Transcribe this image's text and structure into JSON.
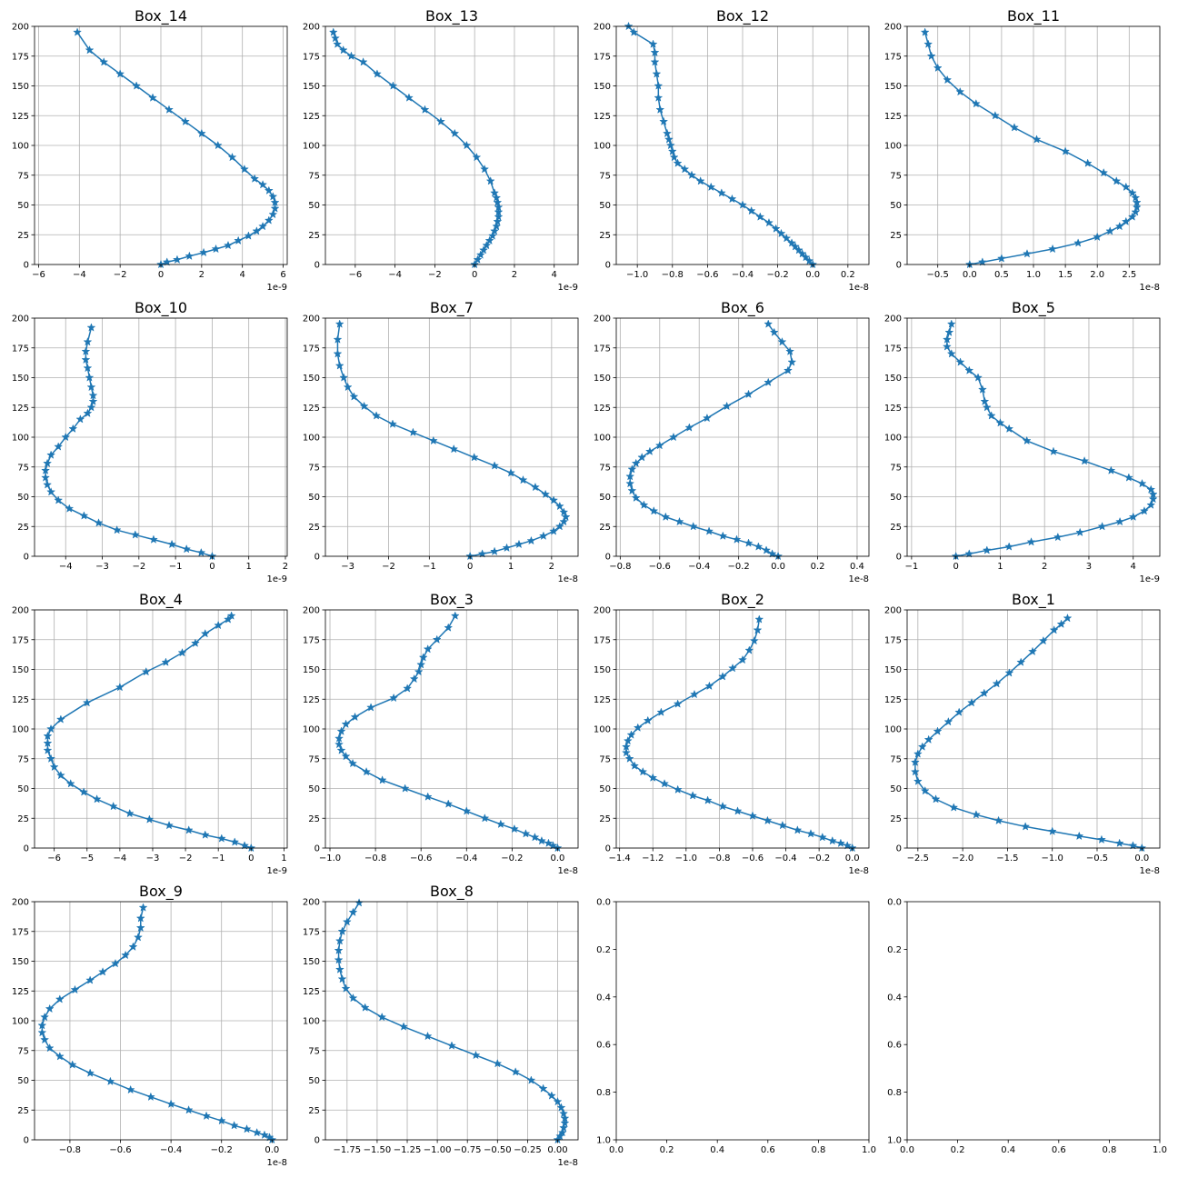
{
  "chart_data": [
    {
      "type": "line",
      "title": "Box_14",
      "multiplier": "1e-9",
      "grid": true,
      "xlim": [
        -6.2,
        6.2
      ],
      "xticks": [
        -6,
        -4,
        -2,
        0,
        2,
        4,
        6
      ],
      "ylim": [
        200,
        0
      ],
      "yticks": [
        0,
        25,
        50,
        75,
        100,
        125,
        150,
        175,
        200
      ],
      "x": [
        0.0,
        0.3,
        0.8,
        1.4,
        2.1,
        2.7,
        3.3,
        3.8,
        4.3,
        4.7,
        5.0,
        5.3,
        5.5,
        5.6,
        5.6,
        5.5,
        5.3,
        5.0,
        4.6,
        4.1,
        3.5,
        2.8,
        2.0,
        1.2,
        0.4,
        -0.4,
        -1.2,
        -2.0,
        -2.8,
        -3.5,
        -4.1
      ],
      "y": [
        0,
        2,
        4,
        7,
        10,
        13,
        16,
        20,
        24,
        28,
        32,
        37,
        42,
        47,
        52,
        57,
        62,
        67,
        72,
        80,
        90,
        100,
        110,
        120,
        130,
        140,
        150,
        160,
        170,
        180,
        195
      ]
    },
    {
      "type": "line",
      "title": "Box_13",
      "multiplier": "1e-9",
      "grid": true,
      "xlim": [
        -7.5,
        5.2
      ],
      "xticks": [
        -6,
        -4,
        -2,
        0,
        2,
        4
      ],
      "ylim": [
        200,
        0
      ],
      "yticks": [
        0,
        25,
        50,
        75,
        100,
        125,
        150,
        175,
        200
      ],
      "x": [
        0.0,
        0.15,
        0.3,
        0.45,
        0.6,
        0.75,
        0.9,
        1.0,
        1.1,
        1.15,
        1.2,
        1.2,
        1.2,
        1.15,
        1.1,
        1.0,
        0.8,
        0.5,
        0.1,
        -0.4,
        -1.0,
        -1.7,
        -2.5,
        -3.3,
        -4.1,
        -4.9,
        -5.6,
        -6.2,
        -6.6,
        -6.9,
        -7.0,
        -7.1
      ],
      "y": [
        0,
        4,
        8,
        12,
        16,
        20,
        24,
        28,
        32,
        36,
        40,
        44,
        48,
        52,
        56,
        60,
        70,
        80,
        90,
        100,
        110,
        120,
        130,
        140,
        150,
        160,
        170,
        175,
        180,
        185,
        190,
        195
      ]
    },
    {
      "type": "line",
      "title": "Box_12",
      "multiplier": "1e-8",
      "grid": true,
      "xlim": [
        -1.12,
        0.32
      ],
      "xticks": [
        -1.0,
        -0.8,
        -0.6,
        -0.4,
        -0.2,
        0.0,
        0.2
      ],
      "ylim": [
        200,
        0
      ],
      "yticks": [
        0,
        25,
        50,
        75,
        100,
        125,
        150,
        175,
        200
      ],
      "x": [
        0.0,
        -0.02,
        -0.04,
        -0.06,
        -0.08,
        -0.1,
        -0.12,
        -0.15,
        -0.18,
        -0.21,
        -0.25,
        -0.3,
        -0.35,
        -0.4,
        -0.46,
        -0.52,
        -0.58,
        -0.64,
        -0.69,
        -0.73,
        -0.77,
        -0.79,
        -0.8,
        -0.81,
        -0.82,
        -0.83,
        -0.85,
        -0.87,
        -0.88,
        -0.88,
        -0.89,
        -0.9,
        -0.9,
        -0.91,
        -1.02,
        -1.05
      ],
      "y": [
        0,
        3,
        6,
        9,
        12,
        15,
        18,
        22,
        26,
        30,
        35,
        40,
        45,
        50,
        55,
        60,
        65,
        70,
        75,
        80,
        85,
        90,
        95,
        100,
        105,
        110,
        120,
        130,
        140,
        150,
        160,
        170,
        178,
        185,
        195,
        200
      ]
    },
    {
      "type": "line",
      "title": "Box_11",
      "multiplier": "1e-8",
      "grid": true,
      "xlim": [
        -0.98,
        2.98
      ],
      "xticks": [
        -0.5,
        0.0,
        0.5,
        1.0,
        1.5,
        2.0,
        2.5
      ],
      "ylim": [
        200,
        0
      ],
      "yticks": [
        0,
        25,
        50,
        75,
        100,
        125,
        150,
        175,
        200
      ],
      "x": [
        0.0,
        0.2,
        0.5,
        0.9,
        1.3,
        1.7,
        2.0,
        2.2,
        2.35,
        2.45,
        2.55,
        2.6,
        2.62,
        2.62,
        2.6,
        2.55,
        2.45,
        2.3,
        2.1,
        1.85,
        1.5,
        1.05,
        0.7,
        0.4,
        0.1,
        -0.15,
        -0.35,
        -0.5,
        -0.6,
        -0.65,
        -0.7
      ],
      "y": [
        0,
        2,
        5,
        9,
        13,
        18,
        23,
        28,
        32,
        36,
        40,
        44,
        48,
        52,
        56,
        60,
        65,
        70,
        77,
        85,
        95,
        105,
        115,
        125,
        135,
        145,
        155,
        165,
        175,
        185,
        195
      ]
    },
    {
      "type": "line",
      "title": "Box_10",
      "multiplier": "1e-9",
      "grid": true,
      "xlim": [
        -4.85,
        2.05
      ],
      "xticks": [
        -4,
        -3,
        -2,
        -1,
        0,
        1,
        2
      ],
      "ylim": [
        200,
        0
      ],
      "yticks": [
        0,
        25,
        50,
        75,
        100,
        125,
        150,
        175,
        200
      ],
      "x": [
        0.0,
        -0.3,
        -0.7,
        -1.1,
        -1.6,
        -2.1,
        -2.6,
        -3.1,
        -3.5,
        -3.9,
        -4.2,
        -4.4,
        -4.5,
        -4.55,
        -4.55,
        -4.5,
        -4.4,
        -4.2,
        -4.0,
        -3.8,
        -3.6,
        -3.4,
        -3.3,
        -3.25,
        -3.25,
        -3.3,
        -3.35,
        -3.4,
        -3.45,
        -3.45,
        -3.4,
        -3.3
      ],
      "y": [
        0,
        3,
        6,
        10,
        14,
        18,
        22,
        28,
        34,
        40,
        47,
        54,
        60,
        66,
        72,
        78,
        85,
        92,
        100,
        107,
        115,
        120,
        125,
        130,
        135,
        142,
        150,
        158,
        165,
        172,
        180,
        192
      ]
    },
    {
      "type": "line",
      "title": "Box_7",
      "multiplier": "1e-8",
      "grid": true,
      "xlim": [
        -3.55,
        2.65
      ],
      "xticks": [
        -3,
        -2,
        -1,
        0,
        1,
        2
      ],
      "ylim": [
        200,
        0
      ],
      "yticks": [
        0,
        25,
        50,
        75,
        100,
        125,
        150,
        175,
        200
      ],
      "x": [
        0.0,
        0.3,
        0.6,
        0.9,
        1.2,
        1.5,
        1.8,
        2.05,
        2.2,
        2.3,
        2.35,
        2.3,
        2.2,
        2.05,
        1.85,
        1.6,
        1.3,
        1.0,
        0.6,
        0.1,
        -0.4,
        -0.9,
        -1.4,
        -1.9,
        -2.3,
        -2.6,
        -2.85,
        -3.0,
        -3.1,
        -3.2,
        -3.25,
        -3.25,
        -3.2
      ],
      "y": [
        0,
        2,
        4,
        7,
        10,
        13,
        17,
        21,
        25,
        29,
        33,
        37,
        42,
        47,
        52,
        58,
        64,
        70,
        76,
        83,
        90,
        97,
        104,
        111,
        118,
        126,
        134,
        142,
        150,
        160,
        170,
        182,
        195
      ]
    },
    {
      "type": "line",
      "title": "Box_6",
      "multiplier": "1e-8",
      "grid": true,
      "xlim": [
        -0.82,
        0.46
      ],
      "xticks": [
        -0.8,
        -0.6,
        -0.4,
        -0.2,
        0.0,
        0.2,
        0.4
      ],
      "ylim": [
        200,
        0
      ],
      "yticks": [
        0,
        25,
        50,
        75,
        100,
        125,
        150,
        175,
        200
      ],
      "x": [
        0.0,
        -0.03,
        -0.06,
        -0.1,
        -0.15,
        -0.21,
        -0.28,
        -0.35,
        -0.43,
        -0.5,
        -0.57,
        -0.63,
        -0.68,
        -0.72,
        -0.74,
        -0.75,
        -0.75,
        -0.74,
        -0.72,
        -0.69,
        -0.65,
        -0.6,
        -0.53,
        -0.45,
        -0.36,
        -0.26,
        -0.15,
        -0.05,
        0.05,
        0.07,
        0.06,
        0.02,
        -0.02,
        -0.05
      ],
      "y": [
        0,
        2,
        5,
        8,
        11,
        14,
        17,
        21,
        25,
        29,
        33,
        38,
        43,
        49,
        55,
        61,
        67,
        73,
        78,
        83,
        88,
        93,
        100,
        108,
        116,
        126,
        136,
        146,
        156,
        163,
        172,
        180,
        188,
        195
      ]
    },
    {
      "type": "line",
      "title": "Box_5",
      "multiplier": "1e-9",
      "grid": true,
      "xlim": [
        -1.1,
        4.6
      ],
      "xticks": [
        -1,
        0,
        1,
        2,
        3,
        4
      ],
      "ylim": [
        200,
        0
      ],
      "yticks": [
        0,
        25,
        50,
        75,
        100,
        125,
        150,
        175,
        200
      ],
      "x": [
        0.0,
        0.3,
        0.7,
        1.2,
        1.7,
        2.3,
        2.8,
        3.3,
        3.7,
        4.0,
        4.25,
        4.4,
        4.45,
        4.45,
        4.4,
        4.2,
        3.9,
        3.5,
        2.9,
        2.2,
        1.6,
        1.2,
        1.0,
        0.8,
        0.7,
        0.65,
        0.6,
        0.5,
        0.3,
        0.1,
        -0.1,
        -0.2,
        -0.2,
        -0.15,
        -0.1
      ],
      "y": [
        0,
        2,
        5,
        8,
        12,
        16,
        20,
        25,
        29,
        33,
        38,
        43,
        48,
        52,
        56,
        61,
        66,
        72,
        80,
        88,
        97,
        107,
        112,
        118,
        125,
        130,
        140,
        150,
        156,
        163,
        170,
        176,
        182,
        188,
        195
      ]
    },
    {
      "type": "line",
      "title": "Box_4",
      "multiplier": "1e-9",
      "grid": true,
      "xlim": [
        -6.6,
        1.1
      ],
      "xticks": [
        -6,
        -5,
        -4,
        -3,
        -2,
        -1,
        0,
        1
      ],
      "ylim": [
        200,
        0
      ],
      "yticks": [
        0,
        25,
        50,
        75,
        100,
        125,
        150,
        175,
        200
      ],
      "x": [
        0.0,
        -0.2,
        -0.5,
        -0.9,
        -1.4,
        -1.9,
        -2.5,
        -3.1,
        -3.7,
        -4.2,
        -4.7,
        -5.1,
        -5.5,
        -5.8,
        -6.0,
        -6.1,
        -6.2,
        -6.2,
        -6.2,
        -6.1,
        -5.8,
        -5.0,
        -4.0,
        -3.2,
        -2.6,
        -2.1,
        -1.7,
        -1.4,
        -1.0,
        -0.7,
        -0.6
      ],
      "y": [
        0,
        2,
        5,
        8,
        11,
        15,
        19,
        24,
        29,
        35,
        41,
        47,
        54,
        61,
        68,
        75,
        82,
        88,
        94,
        100,
        108,
        122,
        135,
        148,
        156,
        164,
        172,
        180,
        187,
        192,
        195
      ]
    },
    {
      "type": "line",
      "title": "Box_3",
      "multiplier": "1e-8",
      "grid": true,
      "xlim": [
        -1.02,
        0.09
      ],
      "xticks": [
        -1.0,
        -0.8,
        -0.6,
        -0.4,
        -0.2,
        0.0
      ],
      "ylim": [
        200,
        0
      ],
      "yticks": [
        0,
        25,
        50,
        75,
        100,
        125,
        150,
        175,
        200
      ],
      "x": [
        0.0,
        -0.02,
        -0.04,
        -0.07,
        -0.1,
        -0.14,
        -0.19,
        -0.25,
        -0.32,
        -0.4,
        -0.48,
        -0.57,
        -0.67,
        -0.77,
        -0.84,
        -0.9,
        -0.93,
        -0.95,
        -0.96,
        -0.96,
        -0.95,
        -0.93,
        -0.89,
        -0.82,
        -0.72,
        -0.66,
        -0.63,
        -0.61,
        -0.6,
        -0.59,
        -0.57,
        -0.53,
        -0.48,
        -0.45
      ],
      "y": [
        0,
        2,
        4,
        6,
        9,
        12,
        16,
        20,
        25,
        31,
        37,
        43,
        50,
        57,
        64,
        71,
        77,
        82,
        87,
        92,
        98,
        104,
        110,
        118,
        126,
        134,
        142,
        148,
        154,
        160,
        167,
        175,
        185,
        195
      ]
    },
    {
      "type": "line",
      "title": "Box_2",
      "multiplier": "1e-8",
      "grid": true,
      "xlim": [
        -1.42,
        0.1
      ],
      "xticks": [
        -1.4,
        -1.2,
        -1.0,
        -0.8,
        -0.6,
        -0.4,
        -0.2,
        0.0
      ],
      "ylim": [
        200,
        0
      ],
      "yticks": [
        0,
        25,
        50,
        75,
        100,
        125,
        150,
        175,
        200
      ],
      "x": [
        0.0,
        -0.03,
        -0.07,
        -0.12,
        -0.18,
        -0.25,
        -0.33,
        -0.42,
        -0.51,
        -0.6,
        -0.69,
        -0.78,
        -0.87,
        -0.96,
        -1.05,
        -1.13,
        -1.2,
        -1.26,
        -1.31,
        -1.34,
        -1.36,
        -1.36,
        -1.35,
        -1.33,
        -1.29,
        -1.23,
        -1.15,
        -1.05,
        -0.95,
        -0.86,
        -0.78,
        -0.72,
        -0.66,
        -0.62,
        -0.59,
        -0.57,
        -0.56
      ],
      "y": [
        0,
        2,
        4,
        6,
        9,
        12,
        15,
        19,
        23,
        27,
        31,
        35,
        40,
        44,
        49,
        54,
        59,
        64,
        69,
        75,
        80,
        85,
        90,
        95,
        101,
        107,
        114,
        121,
        129,
        136,
        144,
        151,
        158,
        166,
        174,
        183,
        192
      ]
    },
    {
      "type": "line",
      "title": "Box_1",
      "multiplier": "1e-8",
      "grid": true,
      "xlim": [
        -2.62,
        0.2
      ],
      "xticks": [
        -2.5,
        -2.0,
        -1.5,
        -1.0,
        -0.5,
        0.0
      ],
      "ylim": [
        200,
        0
      ],
      "yticks": [
        0,
        25,
        50,
        75,
        100,
        125,
        150,
        175,
        200
      ],
      "x": [
        0.0,
        -0.1,
        -0.25,
        -0.45,
        -0.7,
        -1.0,
        -1.3,
        -1.6,
        -1.85,
        -2.1,
        -2.3,
        -2.42,
        -2.5,
        -2.53,
        -2.53,
        -2.5,
        -2.45,
        -2.38,
        -2.28,
        -2.16,
        -2.04,
        -1.9,
        -1.76,
        -1.62,
        -1.48,
        -1.35,
        -1.22,
        -1.1,
        -0.98,
        -0.9,
        -0.83
      ],
      "y": [
        0,
        2,
        4,
        7,
        10,
        14,
        18,
        23,
        28,
        34,
        41,
        48,
        56,
        64,
        72,
        79,
        85,
        91,
        98,
        106,
        114,
        122,
        130,
        138,
        147,
        156,
        165,
        174,
        183,
        188,
        193
      ]
    },
    {
      "type": "line",
      "title": "Box_9",
      "multiplier": "1e-8",
      "grid": true,
      "xlim": [
        -0.94,
        0.06
      ],
      "xticks": [
        -0.8,
        -0.6,
        -0.4,
        -0.2,
        0.0
      ],
      "ylim": [
        200,
        0
      ],
      "yticks": [
        0,
        25,
        50,
        75,
        100,
        125,
        150,
        175,
        200
      ],
      "x": [
        0.0,
        -0.01,
        -0.03,
        -0.06,
        -0.1,
        -0.15,
        -0.2,
        -0.26,
        -0.33,
        -0.4,
        -0.48,
        -0.56,
        -0.64,
        -0.72,
        -0.79,
        -0.84,
        -0.88,
        -0.9,
        -0.91,
        -0.91,
        -0.9,
        -0.88,
        -0.84,
        -0.78,
        -0.72,
        -0.67,
        -0.62,
        -0.58,
        -0.55,
        -0.53,
        -0.52,
        -0.52,
        -0.51
      ],
      "y": [
        0,
        2,
        4,
        6,
        9,
        12,
        16,
        20,
        25,
        30,
        36,
        42,
        49,
        56,
        63,
        70,
        77,
        84,
        90,
        96,
        103,
        110,
        118,
        126,
        134,
        141,
        148,
        155,
        162,
        170,
        178,
        186,
        195
      ]
    },
    {
      "type": "line",
      "title": "Box_8",
      "multiplier": "1e-8",
      "grid": true,
      "xlim": [
        -1.93,
        0.17
      ],
      "xticks": [
        -1.75,
        -1.5,
        -1.25,
        -1.0,
        -0.75,
        -0.5,
        -0.25,
        0.0
      ],
      "ylim": [
        200,
        0
      ],
      "yticks": [
        0,
        25,
        50,
        75,
        100,
        125,
        150,
        175,
        200
      ],
      "x": [
        0.0,
        0.02,
        0.04,
        0.05,
        0.06,
        0.06,
        0.05,
        0.03,
        0.0,
        -0.05,
        -0.12,
        -0.22,
        -0.35,
        -0.5,
        -0.68,
        -0.88,
        -1.08,
        -1.28,
        -1.46,
        -1.6,
        -1.7,
        -1.76,
        -1.79,
        -1.81,
        -1.82,
        -1.82,
        -1.81,
        -1.79,
        -1.75,
        -1.7,
        -1.65
      ],
      "y": [
        0,
        3,
        6,
        10,
        14,
        18,
        22,
        27,
        32,
        37,
        43,
        50,
        57,
        64,
        71,
        79,
        87,
        95,
        103,
        111,
        119,
        127,
        135,
        143,
        151,
        159,
        167,
        175,
        183,
        191,
        199
      ]
    },
    {
      "type": "empty",
      "title": "",
      "grid": false,
      "xlim": [
        0,
        1
      ],
      "xticks": [
        0.0,
        0.2,
        0.4,
        0.6,
        0.8,
        1.0
      ],
      "ylim": [
        0,
        1
      ],
      "yticks": [
        0.0,
        0.2,
        0.4,
        0.6,
        0.8,
        1.0
      ]
    },
    {
      "type": "empty",
      "title": "",
      "grid": false,
      "xlim": [
        0,
        1
      ],
      "xticks": [
        0.0,
        0.2,
        0.4,
        0.6,
        0.8,
        1.0
      ],
      "ylim": [
        0,
        1
      ],
      "yticks": [
        0.0,
        0.2,
        0.4,
        0.6,
        0.8,
        1.0
      ]
    }
  ]
}
